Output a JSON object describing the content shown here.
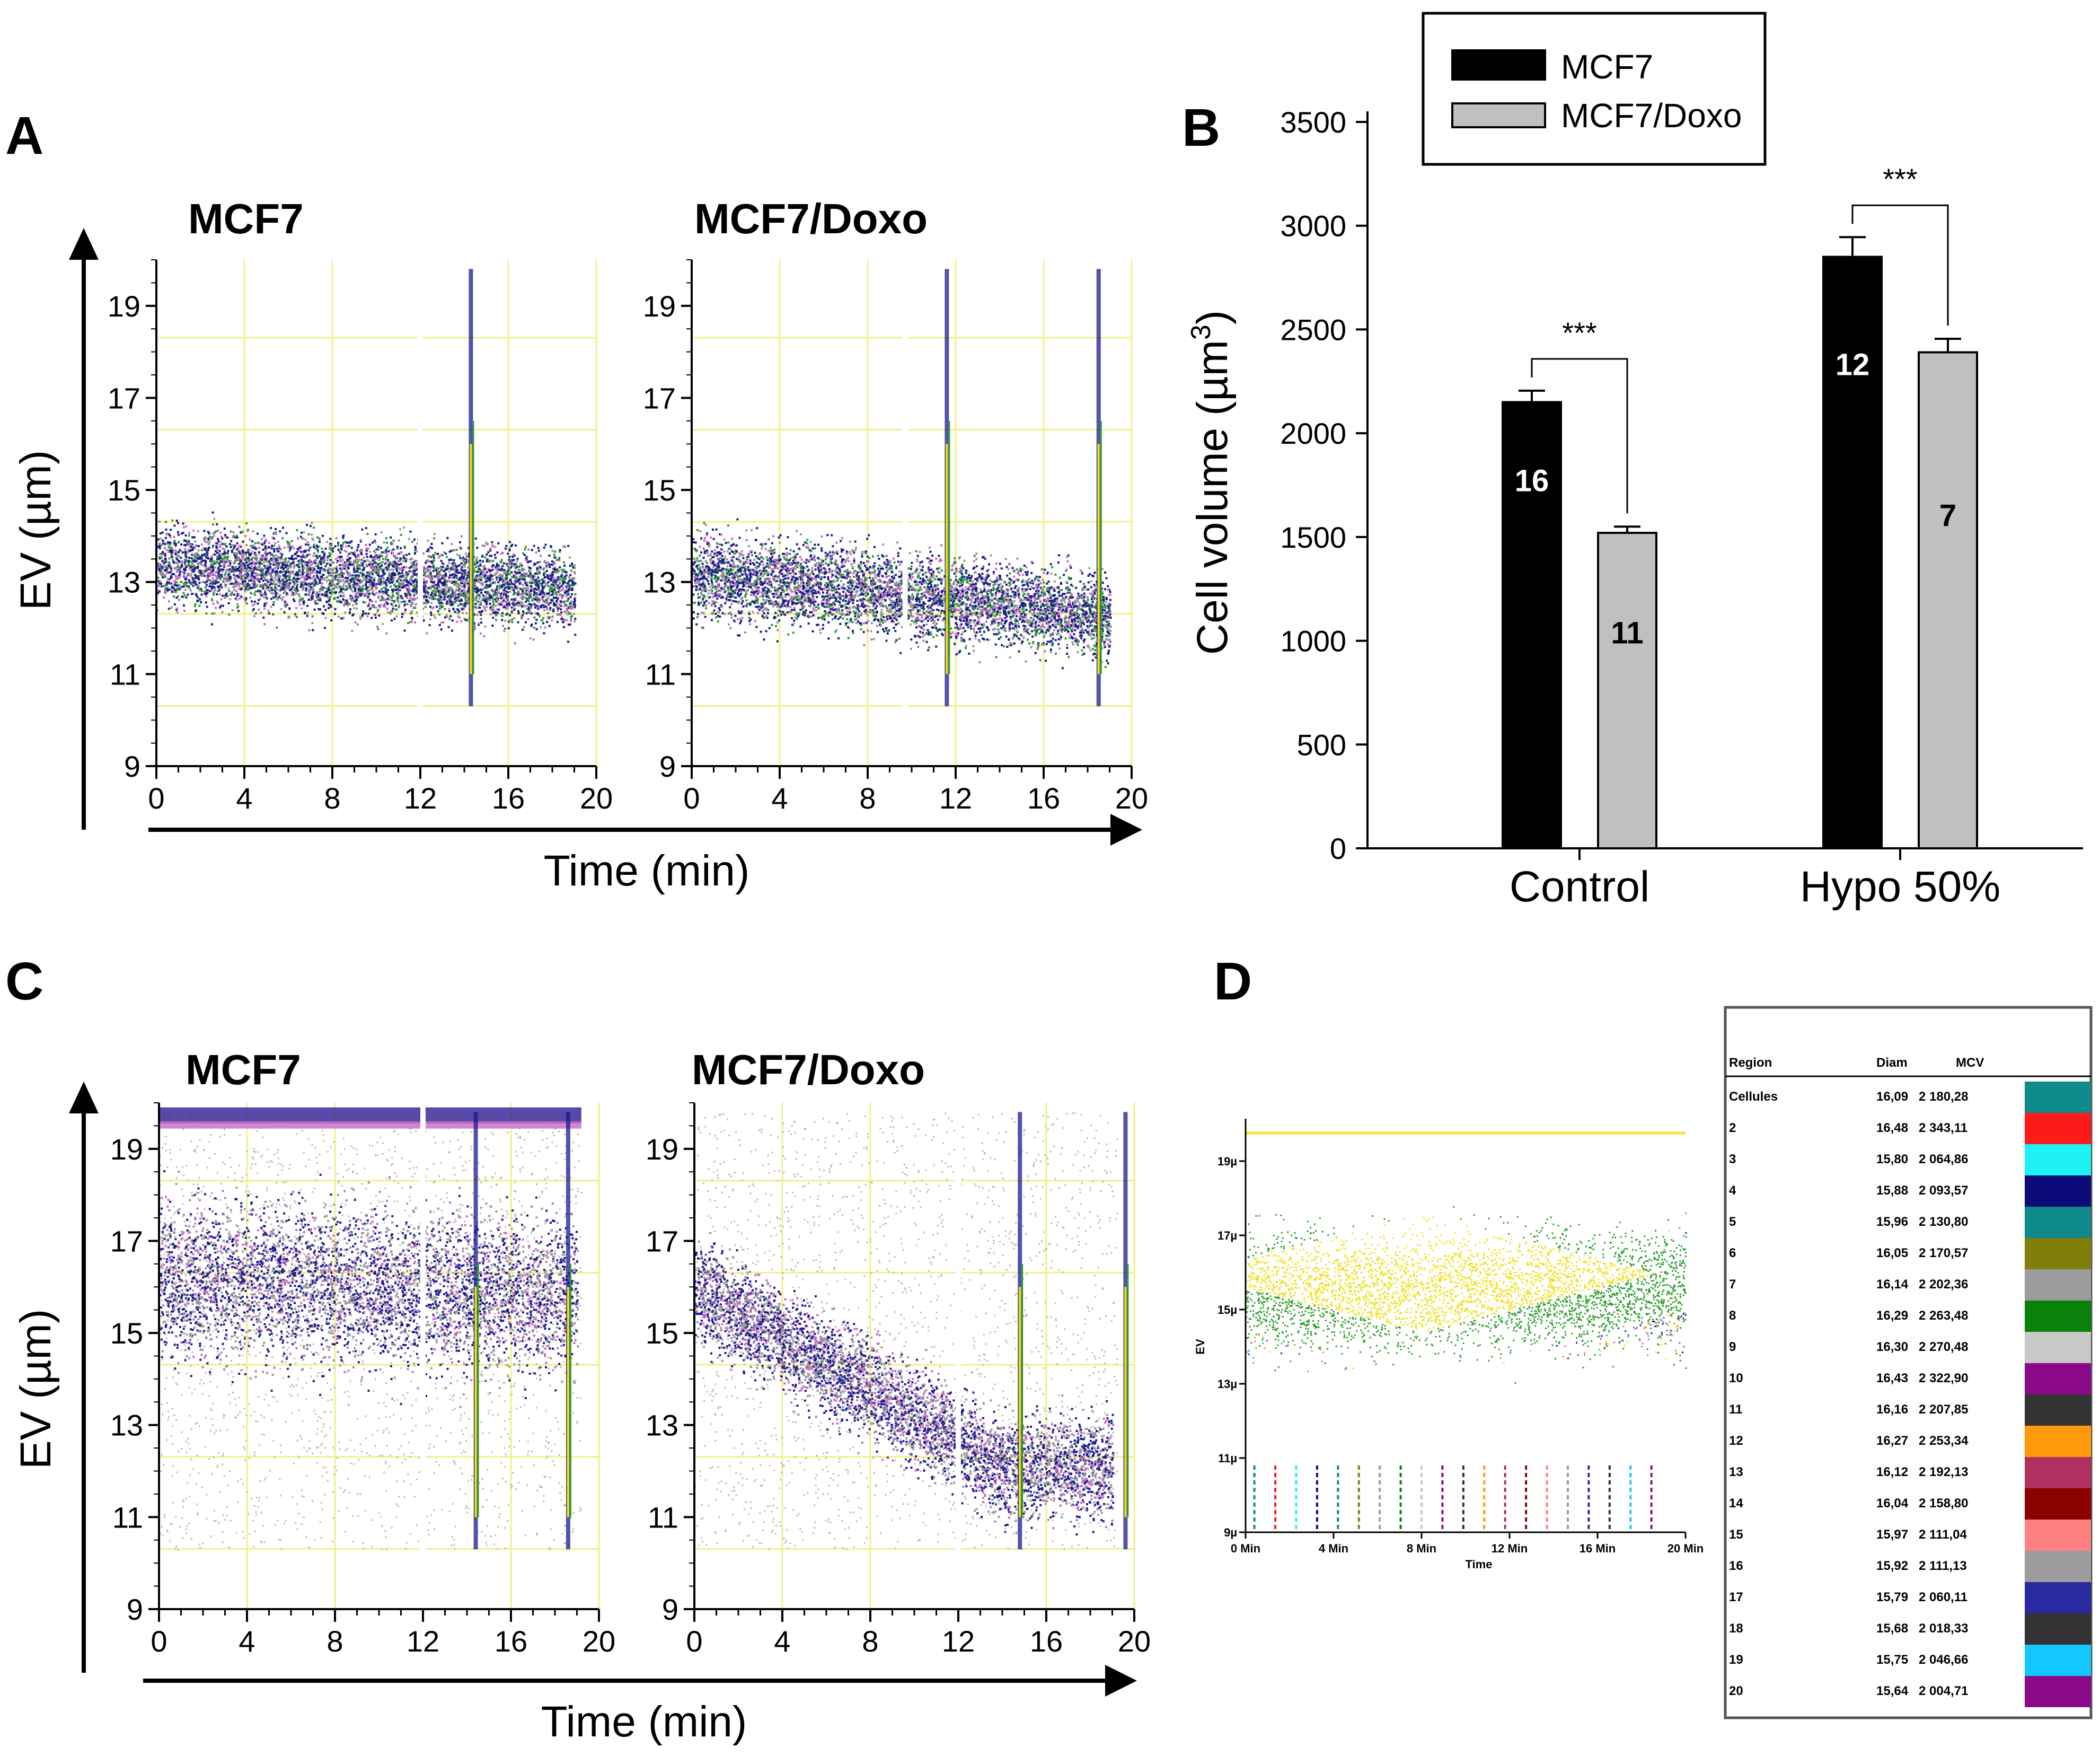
{
  "panels": {
    "A": {
      "letter": "A"
    },
    "B": {
      "letter": "B"
    },
    "C": {
      "letter": "C"
    },
    "D": {
      "letter": "D"
    }
  },
  "colors": {
    "mcf7": "#000000",
    "mcf7doxo": "#c0c0c0",
    "grid": "#f2ef8a",
    "axis": "#000000"
  },
  "chart_data": [
    {
      "id": "A",
      "type": "scatter",
      "description_free": true,
      "subplots": [
        {
          "title": "MCF7",
          "x_range": [
            0,
            20
          ],
          "y_range": [
            9,
            20
          ]
        },
        {
          "title": "MCF7/Doxo",
          "x_range": [
            0,
            20
          ],
          "y_range": [
            9,
            20
          ]
        }
      ],
      "x_ticks": [
        "0",
        "4",
        "8",
        "12",
        "16",
        "20"
      ],
      "y_ticks": [
        "9",
        "11",
        "13",
        "15",
        "17",
        "19"
      ],
      "xlabel": "Time (min)",
      "ylabel": "EV (µm)"
    },
    {
      "id": "B",
      "type": "bar",
      "categories": [
        "Control",
        "Hypo 50%"
      ],
      "series": [
        {
          "name": "MCF7",
          "values": [
            2150,
            2850
          ],
          "errors": [
            55,
            95
          ],
          "n": [
            "16",
            "12"
          ]
        },
        {
          "name": "MCF7/Doxo",
          "values": [
            1520,
            2390
          ],
          "errors": [
            30,
            65
          ],
          "n": [
            "11",
            "7"
          ]
        }
      ],
      "significance": [
        "***",
        "***"
      ],
      "ylabel": "Cell volume (µm³)",
      "ylabel_main": "Cell volume (µm",
      "ylabel_sup": "3",
      "ylabel_end": ")",
      "ylim": [
        0,
        3500
      ],
      "y_ticks": [
        "0",
        "500",
        "1000",
        "1500",
        "2000",
        "2500",
        "3000",
        "3500"
      ],
      "legend": [
        "MCF7",
        "MCF7/Doxo"
      ]
    },
    {
      "id": "C",
      "type": "scatter",
      "subplots": [
        {
          "title": "MCF7",
          "x_range": [
            0,
            20
          ],
          "y_range": [
            9,
            20
          ]
        },
        {
          "title": "MCF7/Doxo",
          "x_range": [
            0,
            20
          ],
          "y_range": [
            9,
            20
          ]
        }
      ],
      "x_ticks": [
        "0",
        "4",
        "8",
        "12",
        "16",
        "20"
      ],
      "y_ticks": [
        "9",
        "11",
        "13",
        "15",
        "17",
        "19"
      ],
      "xlabel": "Time (min)",
      "ylabel": "EV (µm)"
    },
    {
      "id": "D",
      "type": "scatter",
      "x_ticks": [
        "0 Min",
        "4 Min",
        "8 Min",
        "12 Min",
        "16 Min",
        "20 Min"
      ],
      "y_ticks": [
        "9µ",
        "11µ",
        "13µ",
        "15µ",
        "17µ",
        "19µ"
      ],
      "xlabel": "Time",
      "ylabel": "EV",
      "table": {
        "headers": [
          "Region",
          "Diam",
          "MCV"
        ],
        "rows": [
          {
            "region": "Cellules",
            "diam": "16,09",
            "mcv": "2 180,28",
            "color": "#0e8a8a"
          },
          {
            "region": "2",
            "diam": "16,48",
            "mcv": "2 343,11",
            "color": "#ff1a1a"
          },
          {
            "region": "3",
            "diam": "15,80",
            "mcv": "2 064,86",
            "color": "#1ff2f2"
          },
          {
            "region": "4",
            "diam": "15,88",
            "mcv": "2 093,57",
            "color": "#0b0b7a"
          },
          {
            "region": "5",
            "diam": "15,96",
            "mcv": "2 130,80",
            "color": "#0e8a8a"
          },
          {
            "region": "6",
            "diam": "16,05",
            "mcv": "2 170,57",
            "color": "#7f7f0a"
          },
          {
            "region": "7",
            "diam": "16,14",
            "mcv": "2 202,36",
            "color": "#9c9c9c"
          },
          {
            "region": "8",
            "diam": "16,29",
            "mcv": "2 263,48",
            "color": "#0a820a"
          },
          {
            "region": "9",
            "diam": "16,30",
            "mcv": "2 270,48",
            "color": "#c8c8c8"
          },
          {
            "region": "10",
            "diam": "16,43",
            "mcv": "2 322,90",
            "color": "#8a0a8a"
          },
          {
            "region": "11",
            "diam": "16,16",
            "mcv": "2 207,85",
            "color": "#333333"
          },
          {
            "region": "12",
            "diam": "16,27",
            "mcv": "2 253,34",
            "color": "#ff9a0a"
          },
          {
            "region": "13",
            "diam": "16,12",
            "mcv": "2 192,13",
            "color": "#b03060"
          },
          {
            "region": "14",
            "diam": "16,04",
            "mcv": "2 158,80",
            "color": "#8b0000"
          },
          {
            "region": "15",
            "diam": "15,97",
            "mcv": "2 111,04",
            "color": "#ff8080"
          },
          {
            "region": "16",
            "diam": "15,92",
            "mcv": "2 111,13",
            "color": "#9c9c9c"
          },
          {
            "region": "17",
            "diam": "15,79",
            "mcv": "2 060,11",
            "color": "#2a2aa0"
          },
          {
            "region": "18",
            "diam": "15,68",
            "mcv": "2 018,33",
            "color": "#333333"
          },
          {
            "region": "19",
            "diam": "15,75",
            "mcv": "2 046,66",
            "color": "#14c8ff"
          },
          {
            "region": "20",
            "diam": "15,64",
            "mcv": "2 004,71",
            "color": "#8a0a8a"
          }
        ]
      }
    }
  ]
}
